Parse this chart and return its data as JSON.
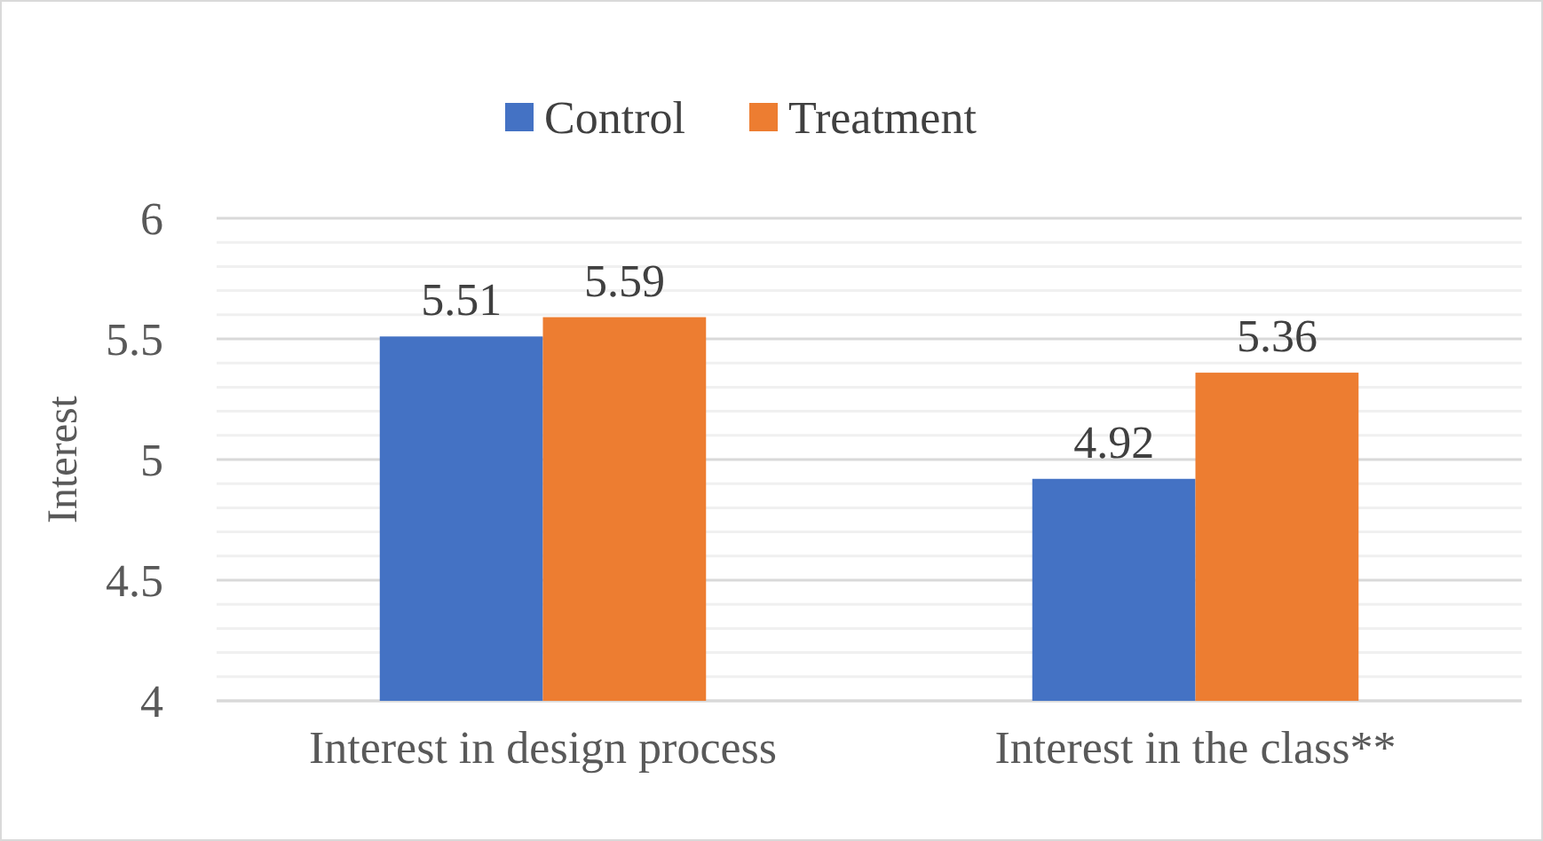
{
  "chart_data": {
    "type": "bar",
    "ylabel": "Interest",
    "categories": [
      "Interest in design process",
      "Interest in the class**"
    ],
    "series": [
      {
        "name": "Control",
        "color": "#4472c4",
        "values": [
          5.51,
          4.92
        ]
      },
      {
        "name": "Treatment",
        "color": "#ed7d31",
        "values": [
          5.59,
          5.36
        ]
      }
    ],
    "ylim": [
      4,
      6
    ],
    "yticks": [
      4,
      {
        "value": 4.1,
        "label": null
      },
      {
        "value": 4.2,
        "label": null
      },
      {
        "value": 4.3,
        "label": null
      },
      {
        "value": 4.4,
        "label": null
      },
      4.5,
      {
        "value": 4.6,
        "label": null
      },
      {
        "value": 4.7,
        "label": null
      },
      {
        "value": 4.8,
        "label": null
      },
      {
        "value": 4.9,
        "label": null
      },
      5,
      {
        "value": 5.1,
        "label": null
      },
      {
        "value": 5.2,
        "label": null
      },
      {
        "value": 5.3,
        "label": null
      },
      {
        "value": 5.4,
        "label": null
      },
      5.5,
      {
        "value": 5.6,
        "label": null
      },
      {
        "value": 5.7,
        "label": null
      },
      {
        "value": 5.8,
        "label": null
      },
      {
        "value": 5.9,
        "label": null
      },
      6
    ],
    "grid": true,
    "legend": "top",
    "data_labels": true
  }
}
